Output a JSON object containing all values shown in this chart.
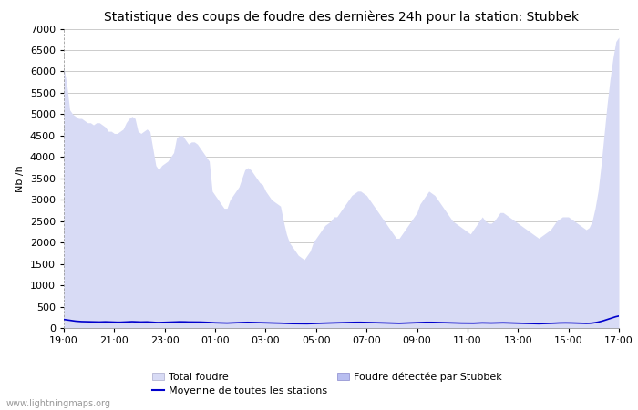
{
  "title": "Statistique des coups de foudre des dernières 24h pour la station: Stubbek",
  "ylabel": "Nb /h",
  "watermark": "www.lightningmaps.org",
  "ylim": [
    0,
    7000
  ],
  "yticks": [
    0,
    500,
    1000,
    1500,
    2000,
    2500,
    3000,
    3500,
    4000,
    4500,
    5000,
    5500,
    6000,
    6500,
    7000
  ],
  "xtick_labels": [
    "19:00",
    "21:00",
    "23:00",
    "01:00",
    "03:00",
    "05:00",
    "07:00",
    "09:00",
    "11:00",
    "13:00",
    "15:00",
    "17:00"
  ],
  "color_total": "#d8dbf5",
  "color_station": "#b8bef0",
  "color_mean": "#0000cc",
  "background_color": "#ffffff",
  "grid_color": "#cccccc",
  "title_fontsize": 10,
  "axis_fontsize": 8,
  "tick_fontsize": 8,
  "total_foudre": [
    6100,
    5700,
    5100,
    5000,
    4950,
    4900,
    4900,
    4850,
    4800,
    4800,
    4750,
    4800,
    4800,
    4750,
    4700,
    4600,
    4600,
    4550,
    4550,
    4600,
    4650,
    4800,
    4900,
    4950,
    4900,
    4600,
    4550,
    4600,
    4650,
    4600,
    4200,
    3800,
    3700,
    3800,
    3850,
    3900,
    4000,
    4100,
    4450,
    4500,
    4500,
    4400,
    4300,
    4350,
    4350,
    4300,
    4200,
    4100,
    4000,
    3900,
    3200,
    3100,
    3000,
    2900,
    2800,
    2800,
    3000,
    3100,
    3200,
    3300,
    3500,
    3700,
    3750,
    3700,
    3600,
    3500,
    3400,
    3350,
    3200,
    3100,
    3000,
    2950,
    2900,
    2850,
    2500,
    2200,
    2000,
    1900,
    1800,
    1700,
    1650,
    1600,
    1700,
    1800,
    2000,
    2100,
    2200,
    2300,
    2400,
    2450,
    2500,
    2600,
    2600,
    2700,
    2800,
    2900,
    3000,
    3100,
    3150,
    3200,
    3200,
    3150,
    3100,
    3000,
    2900,
    2800,
    2700,
    2600,
    2500,
    2400,
    2300,
    2200,
    2100,
    2100,
    2200,
    2300,
    2400,
    2500,
    2600,
    2700,
    2900,
    3000,
    3100,
    3200,
    3150,
    3100,
    3000,
    2900,
    2800,
    2700,
    2600,
    2500,
    2450,
    2400,
    2350,
    2300,
    2250,
    2200,
    2300,
    2400,
    2500,
    2600,
    2500,
    2450,
    2450,
    2500,
    2600,
    2700,
    2700,
    2650,
    2600,
    2550,
    2500,
    2450,
    2400,
    2350,
    2300,
    2250,
    2200,
    2150,
    2100,
    2150,
    2200,
    2250,
    2300,
    2400,
    2500,
    2550,
    2600,
    2600,
    2600,
    2550,
    2500,
    2450,
    2400,
    2350,
    2300,
    2350,
    2500,
    2800,
    3200,
    3800,
    4500,
    5200,
    5800,
    6300,
    6700,
    6800
  ],
  "mean_line": [
    200,
    190,
    180,
    170,
    160,
    155,
    150,
    148,
    145,
    142,
    140,
    138,
    140,
    142,
    145,
    142,
    140,
    138,
    135,
    135,
    138,
    140,
    145,
    148,
    145,
    142,
    140,
    142,
    143,
    140,
    135,
    130,
    128,
    130,
    132,
    133,
    135,
    138,
    142,
    145,
    145,
    143,
    140,
    140,
    140,
    139,
    138,
    136,
    134,
    130,
    125,
    122,
    120,
    118,
    116,
    115,
    118,
    120,
    122,
    125,
    128,
    130,
    132,
    130,
    128,
    126,
    125,
    124,
    122,
    120,
    118,
    116,
    115,
    113,
    110,
    108,
    105,
    103,
    102,
    100,
    99,
    98,
    100,
    102,
    105,
    108,
    110,
    112,
    115,
    116,
    118,
    120,
    120,
    122,
    124,
    126,
    128,
    130,
    132,
    133,
    133,
    132,
    130,
    128,
    126,
    124,
    122,
    120,
    118,
    116,
    114,
    112,
    110,
    110,
    112,
    115,
    118,
    120,
    122,
    125,
    128,
    130,
    132,
    133,
    132,
    130,
    128,
    126,
    124,
    122,
    120,
    118,
    116,
    115,
    114,
    113,
    112,
    110,
    112,
    115,
    118,
    120,
    118,
    116,
    116,
    118,
    120,
    122,
    122,
    120,
    118,
    116,
    114,
    112,
    110,
    108,
    106,
    105,
    104,
    102,
    100,
    102,
    104,
    106,
    108,
    112,
    116,
    118,
    120,
    120,
    120,
    118,
    116,
    114,
    112,
    110,
    108,
    110,
    115,
    125,
    138,
    155,
    175,
    198,
    220,
    245,
    265,
    280
  ]
}
